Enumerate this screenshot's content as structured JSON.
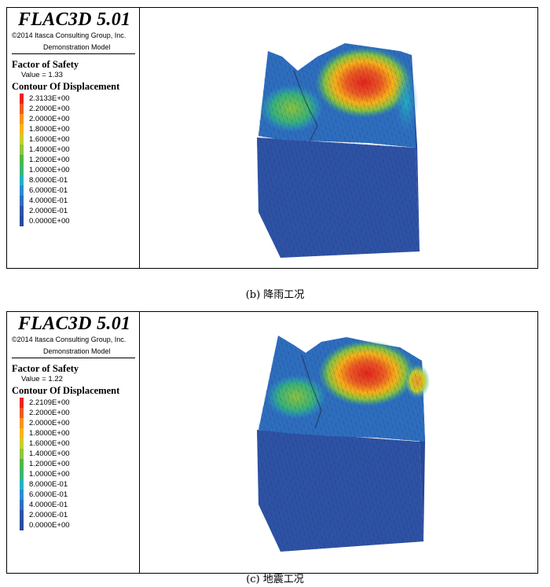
{
  "colors": {
    "contour": [
      "#e8231c",
      "#f05a22",
      "#f7941d",
      "#fcb316",
      "#c8cf2e",
      "#8cc63f",
      "#4db848",
      "#39b57a",
      "#25b1c4",
      "#2a8fd0",
      "#2e6fc1",
      "#2e53a7",
      "#294b9e"
    ],
    "mesh_line": "#1b2a4a"
  },
  "panels": [
    {
      "software": "FLAC3D 5.01",
      "copyright": "©2014 Itasca Consulting Group, Inc.",
      "model": "Demonstration Model",
      "fos_heading": "Factor of Safety",
      "fos_value": "Value = 1.33",
      "contour_heading": "Contour Of Displacement",
      "levels": [
        "2.3133E+00",
        "2.2000E+00",
        "2.0000E+00",
        "1.8000E+00",
        "1.6000E+00",
        "1.4000E+00",
        "1.2000E+00",
        "1.0000E+00",
        "8.0000E-01",
        "6.0000E-01",
        "4.0000E-01",
        "2.0000E-01",
        "0.0000E+00"
      ],
      "caption": "(b) 降雨工况"
    },
    {
      "software": "FLAC3D 5.01",
      "copyright": "©2014 Itasca Consulting Group, Inc.",
      "model": "Demonstration Model",
      "fos_heading": "Factor of Safety",
      "fos_value": "Value = 1.22",
      "contour_heading": "Contour Of Displacement",
      "levels": [
        "2.2109E+00",
        "2.2000E+00",
        "2.0000E+00",
        "1.8000E+00",
        "1.6000E+00",
        "1.4000E+00",
        "1.2000E+00",
        "1.0000E+00",
        "8.0000E-01",
        "6.0000E-01",
        "4.0000E-01",
        "2.0000E-01",
        "0.0000E+00"
      ],
      "caption": "(c) 地震工况"
    }
  ]
}
